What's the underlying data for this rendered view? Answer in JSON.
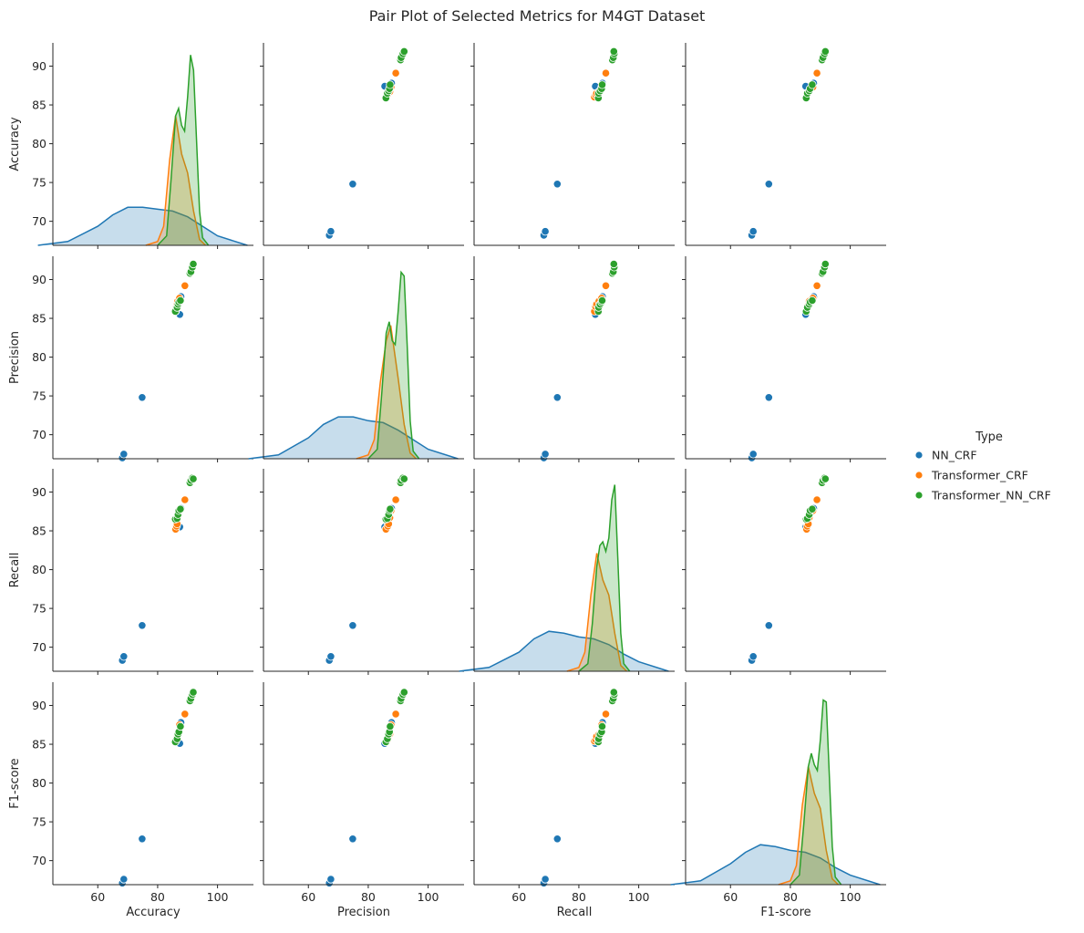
{
  "chart_data": {
    "type": "pairplot",
    "title": "Pair Plot of Selected Metrics for M4GT Dataset",
    "variables": [
      "Accuracy",
      "Precision",
      "Recall",
      "F1-score"
    ],
    "x_ticks": [
      60,
      80,
      100
    ],
    "y_ticks": [
      70,
      75,
      80,
      85,
      90
    ],
    "xlim": [
      45,
      112
    ],
    "ylim": [
      66.9,
      93.0
    ],
    "diag_density_max": 1.0,
    "legend": {
      "title": "Type",
      "position": "right",
      "entries": [
        "NN_CRF",
        "Transformer_CRF",
        "Transformer_NN_CRF"
      ]
    },
    "series": [
      {
        "name": "NN_CRF",
        "color": "#1f77b4",
        "points": [
          {
            "Accuracy": 68.2,
            "Precision": 67.0,
            "Recall": 68.3,
            "F1-score": 67.1
          },
          {
            "Accuracy": 68.7,
            "Precision": 67.5,
            "Recall": 68.8,
            "F1-score": 67.6
          },
          {
            "Accuracy": 74.8,
            "Precision": 74.8,
            "Recall": 72.8,
            "F1-score": 72.8
          },
          {
            "Accuracy": 87.4,
            "Precision": 85.5,
            "Recall": 85.5,
            "F1-score": 85.1
          },
          {
            "Accuracy": 87.8,
            "Precision": 87.8,
            "Recall": 87.9,
            "F1-score": 87.8
          }
        ],
        "density": {
          "Accuracy": {
            "x": [
              40,
              50,
              60,
              65,
              70,
              75,
              80,
              85,
              90,
              95,
              100,
              110
            ],
            "y": [
              0.0,
              0.02,
              0.1,
              0.16,
              0.2,
              0.2,
              0.19,
              0.18,
              0.15,
              0.1,
              0.05,
              0.0
            ]
          },
          "Precision": {
            "x": [
              40,
              50,
              60,
              65,
              70,
              75,
              80,
              85,
              90,
              95,
              100,
              110
            ],
            "y": [
              0.0,
              0.02,
              0.11,
              0.18,
              0.22,
              0.22,
              0.2,
              0.19,
              0.15,
              0.1,
              0.05,
              0.0
            ]
          },
          "Recall": {
            "x": [
              40,
              50,
              60,
              65,
              70,
              75,
              80,
              85,
              90,
              95,
              100,
              110
            ],
            "y": [
              0.0,
              0.02,
              0.1,
              0.17,
              0.21,
              0.2,
              0.18,
              0.17,
              0.14,
              0.09,
              0.05,
              0.0
            ]
          },
          "F1-score": {
            "x": [
              40,
              50,
              60,
              65,
              70,
              75,
              80,
              85,
              90,
              95,
              100,
              110
            ],
            "y": [
              0.0,
              0.02,
              0.11,
              0.17,
              0.21,
              0.2,
              0.18,
              0.17,
              0.14,
              0.09,
              0.05,
              0.0
            ]
          }
        }
      },
      {
        "name": "Transformer_CRF",
        "color": "#ff7f0e",
        "points": [
          {
            "Accuracy": 86.0,
            "Precision": 85.9,
            "Recall": 85.2,
            "F1-score": 85.4
          },
          {
            "Accuracy": 86.3,
            "Precision": 86.5,
            "Recall": 85.6,
            "F1-score": 85.6
          },
          {
            "Accuracy": 86.5,
            "Precision": 86.8,
            "Recall": 85.9,
            "F1-score": 86.0
          },
          {
            "Accuracy": 86.7,
            "Precision": 87.2,
            "Recall": 86.7,
            "F1-score": 86.3
          },
          {
            "Accuracy": 87.3,
            "Precision": 87.6,
            "Recall": 87.6,
            "F1-score": 87.5
          },
          {
            "Accuracy": 89.1,
            "Precision": 89.2,
            "Recall": 89.0,
            "F1-score": 88.9
          }
        ],
        "density": {
          "Accuracy": {
            "x": [
              76,
              80,
              82,
              84,
              86,
              88,
              90,
              92,
              94,
              96
            ],
            "y": [
              0.0,
              0.02,
              0.1,
              0.45,
              0.68,
              0.48,
              0.38,
              0.18,
              0.03,
              0.0
            ]
          },
          "Precision": {
            "x": [
              76,
              80,
              82,
              84,
              86,
              87.5,
              90,
              92,
              94,
              96
            ],
            "y": [
              0.0,
              0.02,
              0.1,
              0.4,
              0.62,
              0.7,
              0.42,
              0.18,
              0.03,
              0.0
            ]
          },
          "Recall": {
            "x": [
              76,
              80,
              82,
              84,
              86,
              88,
              90,
              92,
              94,
              96
            ],
            "y": [
              0.0,
              0.02,
              0.1,
              0.4,
              0.62,
              0.48,
              0.4,
              0.2,
              0.03,
              0.0
            ]
          },
          "F1-score": {
            "x": [
              76,
              80,
              82,
              84,
              86,
              88,
              90,
              92,
              94,
              96
            ],
            "y": [
              0.0,
              0.02,
              0.1,
              0.42,
              0.62,
              0.48,
              0.4,
              0.18,
              0.03,
              0.0
            ]
          }
        }
      },
      {
        "name": "Transformer_NN_CRF",
        "color": "#2ca02c",
        "points": [
          {
            "Accuracy": 85.9,
            "Precision": 85.9,
            "Recall": 86.5,
            "F1-score": 85.3
          },
          {
            "Accuracy": 86.5,
            "Precision": 86.4,
            "Recall": 86.6,
            "F1-score": 85.7
          },
          {
            "Accuracy": 86.8,
            "Precision": 86.8,
            "Recall": 87.1,
            "F1-score": 86.3
          },
          {
            "Accuracy": 87.1,
            "Precision": 87.1,
            "Recall": 87.6,
            "F1-score": 86.6
          },
          {
            "Accuracy": 87.6,
            "Precision": 87.3,
            "Recall": 87.8,
            "F1-score": 87.3
          },
          {
            "Accuracy": 90.8,
            "Precision": 90.8,
            "Recall": 91.2,
            "F1-score": 90.6
          },
          {
            "Accuracy": 91.1,
            "Precision": 91.0,
            "Recall": 91.5,
            "F1-score": 90.9
          },
          {
            "Accuracy": 91.6,
            "Precision": 91.6,
            "Recall": 91.8,
            "F1-score": 91.4
          },
          {
            "Accuracy": 91.9,
            "Precision": 92.0,
            "Recall": 91.7,
            "F1-score": 91.7
          }
        ],
        "density": {
          "Accuracy": {
            "x": [
              80,
              83,
              84.5,
              86,
              87,
              88,
              89,
              90,
              91,
              92,
              93,
              94,
              95,
              97
            ],
            "y": [
              0.0,
              0.05,
              0.35,
              0.68,
              0.72,
              0.63,
              0.6,
              0.78,
              1.0,
              0.92,
              0.55,
              0.18,
              0.04,
              0.0
            ]
          },
          "Precision": {
            "x": [
              80,
              83,
              84.5,
              86,
              87,
              88,
              89,
              90,
              91,
              92,
              93,
              94,
              95,
              97
            ],
            "y": [
              0.0,
              0.05,
              0.34,
              0.66,
              0.72,
              0.62,
              0.6,
              0.78,
              0.98,
              0.96,
              0.6,
              0.2,
              0.04,
              0.0
            ]
          },
          "Recall": {
            "x": [
              80,
              83,
              84.5,
              86,
              87,
              88,
              89,
              90,
              91,
              92,
              93,
              94,
              95,
              97
            ],
            "y": [
              0.0,
              0.04,
              0.25,
              0.55,
              0.66,
              0.68,
              0.63,
              0.7,
              0.9,
              0.98,
              0.6,
              0.2,
              0.04,
              0.0
            ]
          },
          "F1-score": {
            "x": [
              80,
              83,
              84.5,
              86,
              87,
              88,
              89,
              90,
              91,
              92,
              93,
              94,
              95,
              97
            ],
            "y": [
              0.0,
              0.05,
              0.32,
              0.62,
              0.69,
              0.63,
              0.6,
              0.76,
              0.97,
              0.96,
              0.58,
              0.2,
              0.04,
              0.0
            ]
          }
        }
      }
    ]
  }
}
